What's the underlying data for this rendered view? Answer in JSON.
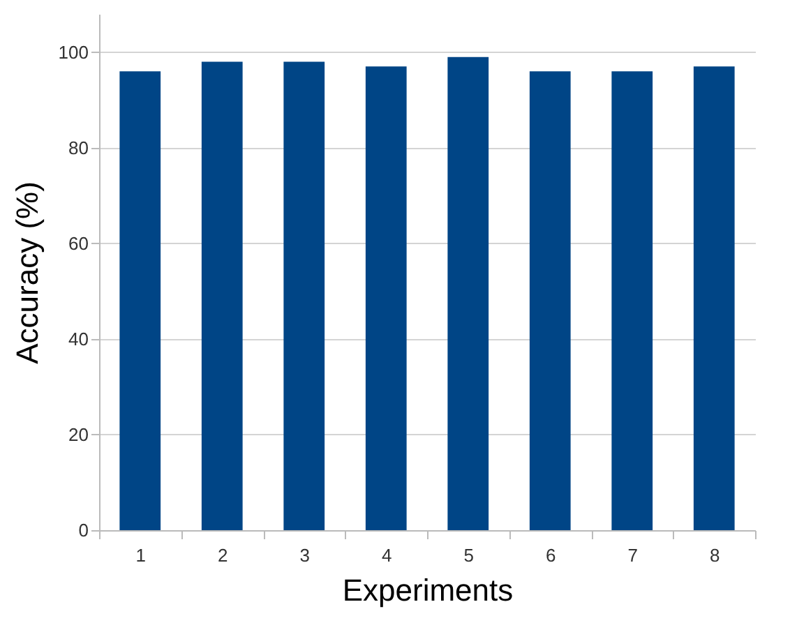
{
  "chart_data": {
    "type": "bar",
    "xlabel": "Experiments",
    "ylabel": "Accuracy (%)",
    "categories": [
      "1",
      "2",
      "3",
      "4",
      "5",
      "6",
      "7",
      "8"
    ],
    "values": [
      96,
      98,
      98,
      97,
      99,
      96,
      96,
      97
    ],
    "color": "#004586",
    "ylim": [
      0,
      108
    ],
    "yticks": [
      0,
      20,
      40,
      60,
      80,
      100
    ],
    "grid": "y"
  }
}
